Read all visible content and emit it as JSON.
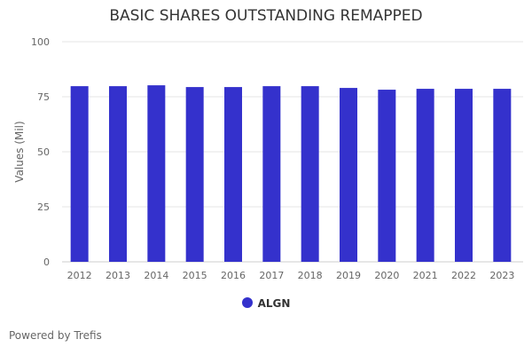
{
  "chart_data": {
    "type": "bar",
    "title": "BASIC SHARES OUTSTANDING REMAPPED",
    "xlabel": "",
    "ylabel": "Values (Mil)",
    "ylim": [
      0,
      100
    ],
    "yticks": [
      0,
      25,
      50,
      75,
      100
    ],
    "grid": true,
    "legend_position": "bottom",
    "categories": [
      "2012",
      "2013",
      "2014",
      "2015",
      "2016",
      "2017",
      "2018",
      "2019",
      "2020",
      "2021",
      "2022",
      "2023"
    ],
    "series": [
      {
        "name": "ALGN",
        "color": "#3431cc",
        "values": [
          79.8,
          79.8,
          80.2,
          79.4,
          79.4,
          79.8,
          79.8,
          79.0,
          78.2,
          78.6,
          78.6,
          78.6
        ]
      }
    ]
  },
  "footer": "Powered by Trefis"
}
